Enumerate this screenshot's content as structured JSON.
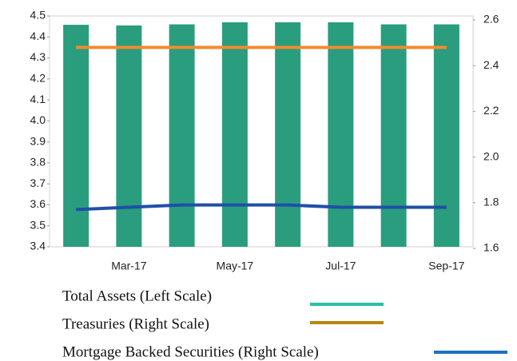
{
  "chart_data": {
    "type": "bar-line",
    "categories": [
      null,
      "Mar-17",
      null,
      "May-17",
      null,
      "Jul-17",
      null,
      "Sep-17"
    ],
    "series": [
      {
        "name": "Total Assets (Left Scale)",
        "type": "bar",
        "axis": "y",
        "color": "#2a9d7e",
        "legend_color": "#2bbfa4",
        "values": [
          4.458,
          4.455,
          4.46,
          4.47,
          4.47,
          4.47,
          4.46,
          4.46
        ]
      },
      {
        "name": "Treasuries (Right Scale)",
        "type": "line",
        "axis": "y2",
        "color": "#f28b30",
        "legend_color": "#b8860b",
        "values": [
          2.48,
          2.48,
          2.48,
          2.48,
          2.48,
          2.48,
          2.48,
          2.48
        ]
      },
      {
        "name": "Mortgage Backed Securities (Right Scale)",
        "type": "line",
        "axis": "y2",
        "color": "#1f4fa8",
        "legend_color": "#1f6fbf",
        "values": [
          1.77,
          1.78,
          1.79,
          1.79,
          1.79,
          1.78,
          1.78,
          1.78
        ]
      }
    ],
    "ylim": [
      3.4,
      4.5
    ],
    "yticks": [
      3.4,
      3.5,
      3.6,
      3.7,
      3.8,
      3.9,
      {
        "value": 4,
        "label": "4.0"
      },
      4.1,
      4.2,
      4.3,
      4.4,
      4.5
    ],
    "y2lim": [
      1.6,
      2.6
    ],
    "y2ticks": [
      1.6,
      1.8,
      {
        "value": 2,
        "label": "2.0"
      },
      2.2,
      2.4,
      2.6
    ]
  }
}
